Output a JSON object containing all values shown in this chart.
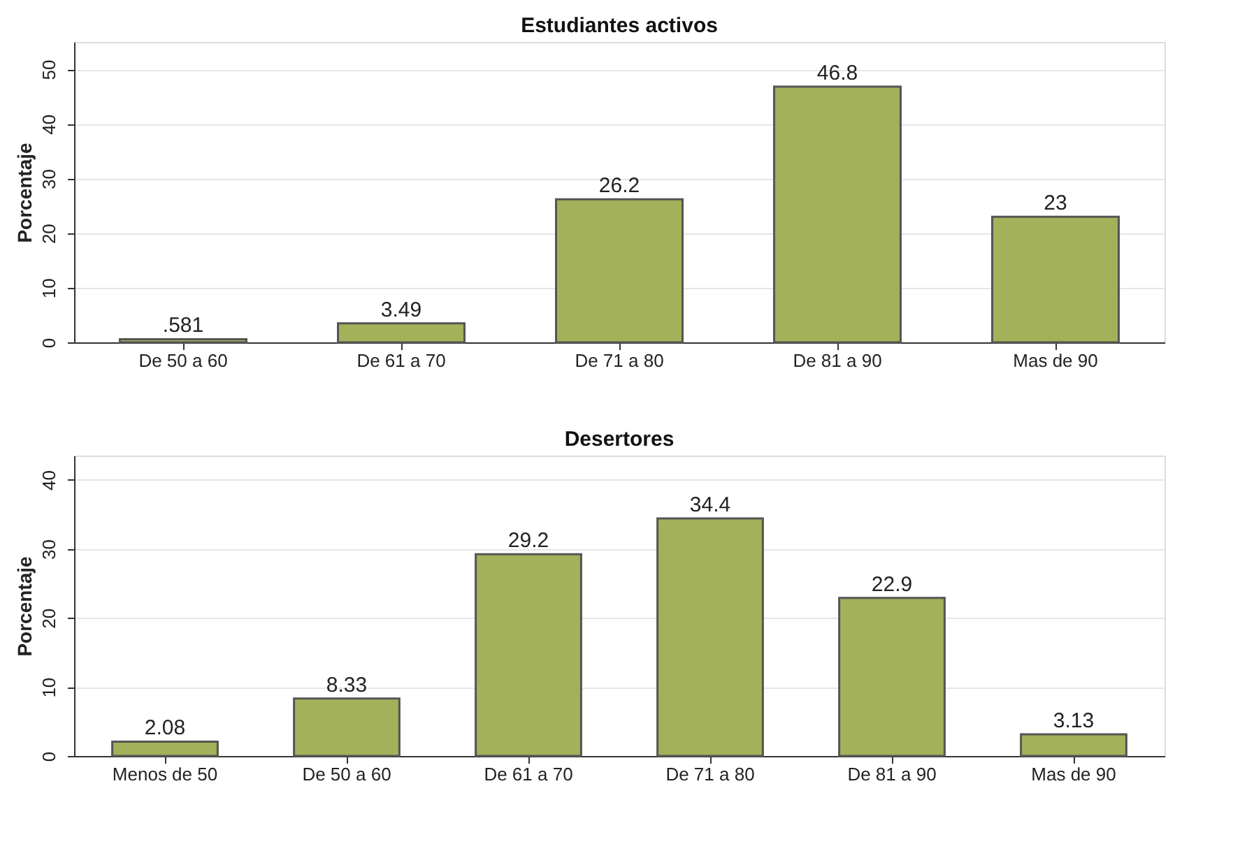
{
  "chart_data": [
    {
      "type": "bar",
      "title": "Estudiantes activos",
      "ylabel": "Porcentaje",
      "categories": [
        "De 50 a 60",
        "De 61 a 70",
        "De 71 a 80",
        "De 81 a 90",
        "Mas de 90"
      ],
      "values": [
        0.581,
        3.49,
        26.2,
        46.8,
        23
      ],
      "value_labels": [
        ".581",
        "3.49",
        "26.2",
        "46.8",
        "23"
      ],
      "color": "#a3b15a",
      "ylim": [
        0,
        55
      ],
      "yticks": [
        0,
        10,
        20,
        30,
        40,
        50
      ],
      "grid": "y"
    },
    {
      "type": "bar",
      "title": "Desertores",
      "ylabel": "Porcentaje",
      "categories": [
        "Menos de 50",
        "De 50 a 60",
        "De 61 a 70",
        "De 71 a 80",
        "De 81 a 90",
        "Mas de 90"
      ],
      "values": [
        2.08,
        8.33,
        29.2,
        34.4,
        22.9,
        3.13
      ],
      "value_labels": [
        "2.08",
        "8.33",
        "29.2",
        "34.4",
        "22.9",
        "3.13"
      ],
      "color": "#a3b15a",
      "ylim": [
        0,
        43.5
      ],
      "yticks": [
        0,
        10,
        20,
        30,
        40
      ],
      "grid": "y"
    }
  ]
}
